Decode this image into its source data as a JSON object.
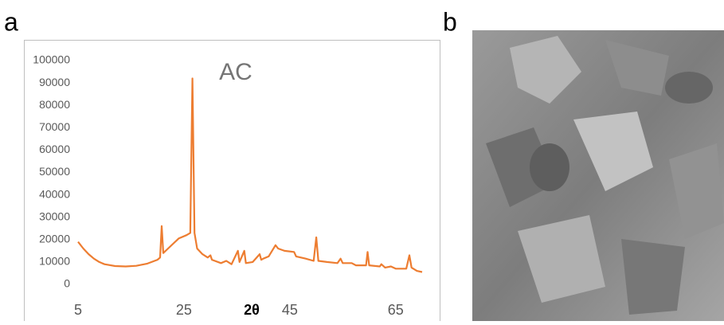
{
  "figure": {
    "panel_labels": [
      "a",
      "b"
    ]
  },
  "chart_data": {
    "type": "line",
    "title": "AC",
    "x_label": "2θ",
    "series": [
      {
        "color": "#ed7d31",
        "x": [
          5,
          6,
          7,
          8,
          9,
          10,
          12,
          14,
          16,
          18,
          20,
          20.5,
          20.8,
          21.1,
          22,
          24,
          25.5,
          26.2,
          26.6,
          27,
          27.5,
          28.5,
          29.5,
          30,
          30.3,
          32,
          33,
          34,
          35.2,
          35.5,
          36.4,
          36.7,
          38,
          39.3,
          39.6,
          40,
          41,
          42.3,
          42.8,
          44,
          45.8,
          46.2,
          48,
          49.5,
          50,
          50.4,
          52,
          54,
          54.6,
          55,
          56.7,
          57.5,
          59.4,
          59.7,
          60,
          62,
          62.3,
          63,
          64.1,
          65,
          67,
          67.6,
          68,
          69,
          70
        ],
        "values": [
          19000,
          16000,
          13500,
          11500,
          10000,
          9000,
          8200,
          8000,
          8300,
          9200,
          11000,
          12000,
          26000,
          14000,
          16000,
          20500,
          22000,
          23000,
          92000,
          23000,
          16000,
          13500,
          12000,
          13000,
          11000,
          9500,
          10500,
          9000,
          15000,
          10000,
          15000,
          9500,
          10000,
          13500,
          11000,
          11500,
          12500,
          17500,
          16000,
          15000,
          14500,
          12500,
          11500,
          10500,
          21000,
          10500,
          10000,
          9500,
          11500,
          9500,
          9500,
          8500,
          8500,
          14500,
          8500,
          8000,
          9000,
          7500,
          8000,
          7000,
          7000,
          13000,
          7500,
          6000,
          5500
        ]
      }
    ],
    "xlim": [
      5,
      70
    ],
    "xticks": [
      5,
      25,
      45,
      65
    ],
    "ylim": [
      0,
      100000
    ],
    "yticks": [
      0,
      10000,
      20000,
      30000,
      40000,
      50000,
      60000,
      70000,
      80000,
      90000,
      100000
    ]
  }
}
